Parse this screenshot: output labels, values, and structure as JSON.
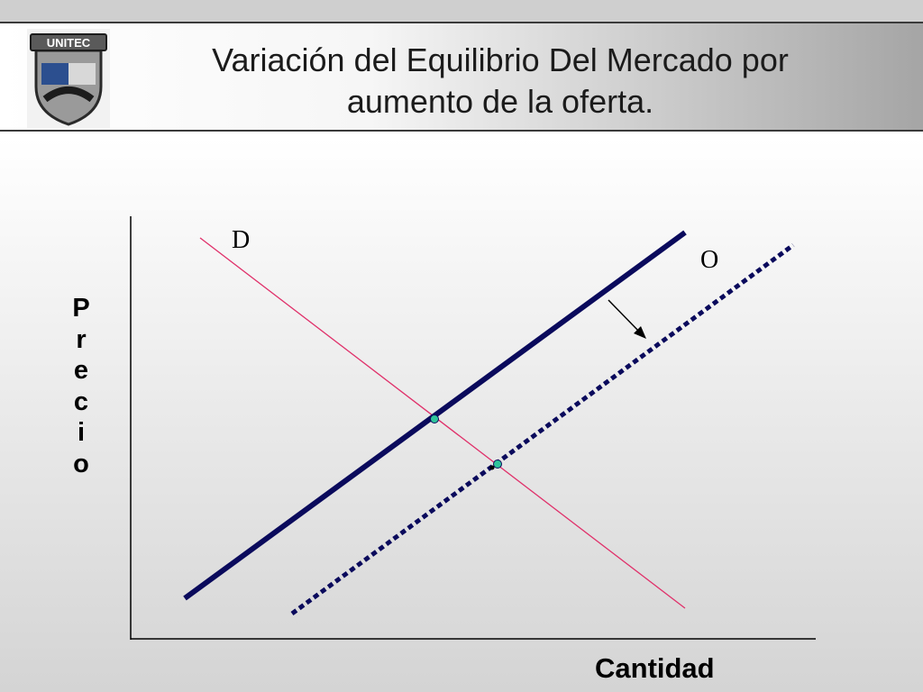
{
  "title": {
    "line1": "Variación del Equilibrio Del Mercado por",
    "line2": "aumento de la oferta."
  },
  "logo": {
    "text": "UNITEC"
  },
  "diagram": {
    "ylabel_letters": [
      "P",
      "r",
      "e",
      "c",
      "i",
      "o"
    ],
    "xlabel": "Cantidad",
    "demand_label": "D",
    "supply_label": "O",
    "colors": {
      "demand": "#e0306a",
      "supply": "#0a0a5c",
      "equilibrium": "#2fc49a"
    }
  }
}
